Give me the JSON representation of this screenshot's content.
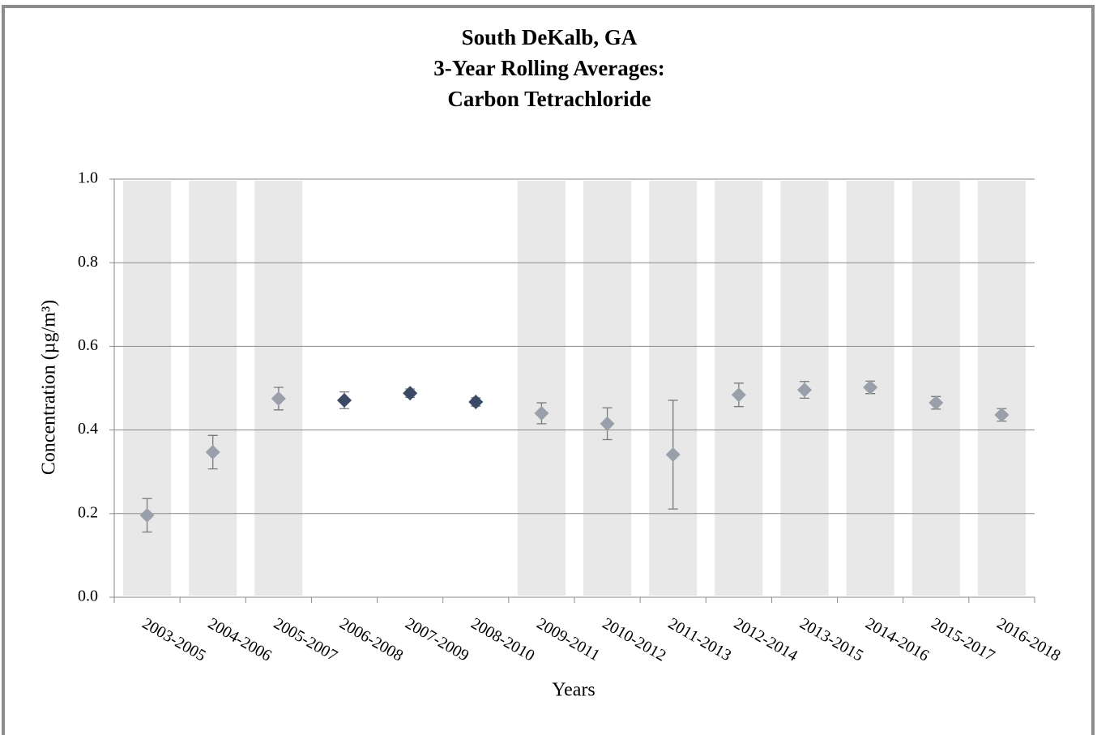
{
  "chart_data": {
    "type": "scatter",
    "title": [
      "South DeKalb, GA",
      "3-Year Rolling Averages:",
      "Carbon Tetrachloride"
    ],
    "x_label": "Years",
    "y_label": "Concentration (µg/m³)",
    "categories": [
      "2003-2005",
      "2004-2006",
      "2005-2007",
      "2006-2008",
      "2007-2009",
      "2008-2010",
      "2009-2011",
      "2010-2012",
      "2011-2013",
      "2012-2014",
      "2013-2015",
      "2014-2016",
      "2015-2017",
      "2016-2018"
    ],
    "values": [
      0.196,
      0.347,
      0.475,
      0.471,
      0.488,
      0.467,
      0.44,
      0.415,
      0.341,
      0.484,
      0.496,
      0.502,
      0.465,
      0.436
    ],
    "errors": [
      0.04,
      0.04,
      0.027,
      0.02,
      0.01,
      0.01,
      0.025,
      0.038,
      0.13,
      0.028,
      0.02,
      0.015,
      0.015,
      0.015
    ],
    "colors": [
      "#9aa0ab",
      "#9aa0ab",
      "#9aa0ab",
      "#3a4a66",
      "#3a4a66",
      "#3a4a66",
      "#9aa0ab",
      "#9aa0ab",
      "#9aa0ab",
      "#9aa0ab",
      "#9aa0ab",
      "#9aa0ab",
      "#9aa0ab",
      "#9aa0ab"
    ],
    "shaded": [
      true,
      true,
      true,
      false,
      false,
      false,
      true,
      true,
      true,
      true,
      true,
      true,
      true,
      true
    ],
    "shade_color": "#e8e8e8",
    "ylim": [
      0,
      1.0
    ],
    "yticks": [
      {
        "value": 0,
        "label": "0.0"
      },
      0.2,
      0.4,
      0.6,
      0.8,
      {
        "value": 1.0,
        "label": "1.0"
      }
    ],
    "grid": true
  }
}
